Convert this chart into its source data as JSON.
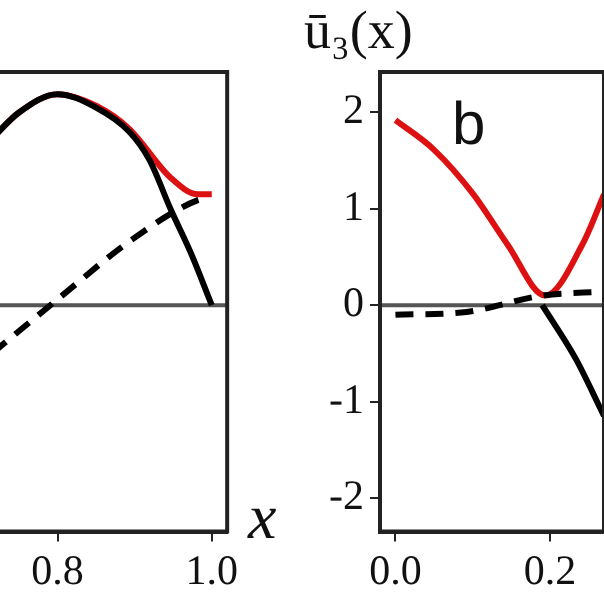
{
  "chart_data": [
    {
      "type": "line",
      "xlabel": "x",
      "xlim": [
        0.715,
        1.02
      ],
      "xticks": [
        {
          "value": 0.8,
          "label": "0.8"
        },
        {
          "value": 1.0,
          "label": "1.0"
        }
      ],
      "ylim": [
        -2.35,
        2.42
      ],
      "yticks": [
        -2,
        -1,
        0,
        1,
        2
      ],
      "tick_labels": "x",
      "marker": "none",
      "ref_lines": [
        {
          "axis": "y",
          "value": 0,
          "color": "#555555"
        }
      ],
      "series": [
        {
          "color": "#000000",
          "line_style": "dashed",
          "x": [
            0.715,
            0.803,
            0.893,
            0.982,
            0.99
          ],
          "values": [
            -0.5,
            0.08,
            0.66,
            1.09,
            1.1
          ]
        },
        {
          "color": "#000000",
          "line_style": "solid",
          "x": [
            0.715,
            0.75,
            0.8,
            0.85,
            0.893,
            0.919,
            0.947,
            0.973,
            1.0
          ],
          "values": [
            1.73,
            2.0,
            2.19,
            2.05,
            1.8,
            1.51,
            0.99,
            0.54,
            0
          ]
        },
        {
          "color": "#dd1111",
          "line_style": "solid",
          "x": [
            0.715,
            0.75,
            0.8,
            0.85,
            0.893,
            0.947,
            0.982,
            1.0
          ],
          "values": [
            1.73,
            2.0,
            2.19,
            2.07,
            1.83,
            1.32,
            1.15,
            1.15
          ]
        }
      ]
    },
    {
      "type": "line",
      "ylabel": "ū₃(x)",
      "annotations": [
        "b"
      ],
      "xlim": [
        -0.02,
        0.27
      ],
      "xticks": [
        {
          "value": 0,
          "label": "0.0"
        },
        {
          "value": 0.2,
          "label": "0.2"
        }
      ],
      "ylim": [
        -2.35,
        2.42
      ],
      "yticks": [
        -2,
        -1,
        0,
        1,
        2
      ],
      "marker": "none",
      "ref_lines": [
        {
          "axis": "y",
          "value": 0,
          "color": "#555555"
        }
      ],
      "series": [
        {
          "color": "#000000",
          "line_style": "dashed",
          "x": [
            0,
            0.092,
            0.19,
            0.27
          ],
          "values": [
            -0.1,
            -0.07,
            0.1,
            0.14
          ]
        },
        {
          "color": "#000000",
          "line_style": "solid",
          "x": [
            0.19,
            0.233,
            0.27
          ],
          "values": [
            0,
            -0.55,
            -1.15
          ]
        },
        {
          "color": "#dd1111",
          "line_style": "solid",
          "x": [
            0,
            0.049,
            0.1,
            0.145,
            0.194,
            0.242,
            0.27
          ],
          "values": [
            1.92,
            1.62,
            1.16,
            0.63,
            0.1,
            0.63,
            1.15
          ]
        }
      ]
    }
  ]
}
